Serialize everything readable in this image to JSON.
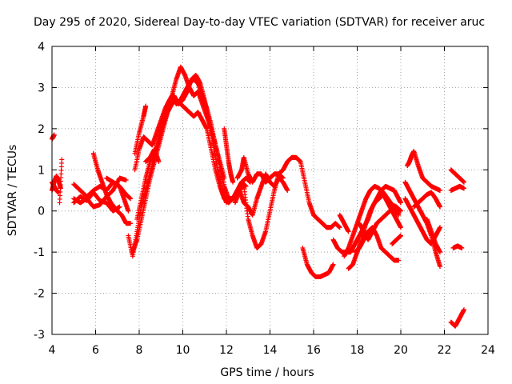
{
  "chart_data": {
    "type": "scatter",
    "title": "Day 295 of 2020, Sidereal Day-to-day VTEC variation (SDTVAR) for receiver aruc",
    "xlabel": "GPS time / hours",
    "ylabel": "SDTVAR / TECUs",
    "xlim": [
      4,
      24
    ],
    "ylim": [
      -3,
      4
    ],
    "x_ticks": [
      4,
      6,
      8,
      10,
      12,
      14,
      16,
      18,
      20,
      22,
      24
    ],
    "y_ticks": [
      -3,
      -2,
      -1,
      0,
      1,
      2,
      3,
      4
    ],
    "x_tick_labels": [
      "4",
      "6",
      "8",
      "10",
      "12",
      "14",
      "16",
      "18",
      "20",
      "22",
      "24"
    ],
    "y_tick_labels": [
      "-3",
      "-2",
      "-1",
      "0",
      "1",
      "2",
      "3",
      "4"
    ],
    "grid": true,
    "marker": "+",
    "color": "#ff0000",
    "series": [
      {
        "name": "s01",
        "x": [
          4.0,
          4.05,
          4.1
        ],
        "y": [
          1.75,
          1.8,
          1.85
        ]
      },
      {
        "name": "s02",
        "x": [
          4.0,
          4.1,
          4.2,
          4.3,
          4.4
        ],
        "y": [
          0.5,
          0.7,
          0.85,
          0.75,
          0.55
        ]
      },
      {
        "name": "s03",
        "x": [
          4.0,
          4.1,
          4.2,
          4.3
        ],
        "y": [
          0.7,
          0.6,
          0.5,
          0.45
        ]
      },
      {
        "name": "s04",
        "x": [
          4.35,
          4.45
        ],
        "y": [
          0.2,
          1.25
        ]
      },
      {
        "name": "s05",
        "x": [
          5.0,
          5.3,
          5.6,
          5.9,
          6.2,
          6.5,
          6.8,
          7.1,
          7.3,
          7.5
        ],
        "y": [
          0.65,
          0.5,
          0.35,
          0.5,
          0.6,
          0.5,
          0.7,
          0.6,
          0.3,
          0.0
        ]
      },
      {
        "name": "s06",
        "x": [
          5.0,
          5.3,
          5.6,
          5.9,
          6.2,
          6.5,
          6.8,
          7.1
        ],
        "y": [
          0.2,
          0.35,
          0.25,
          0.45,
          0.25,
          0.2,
          0.0,
          0.1
        ]
      },
      {
        "name": "s07",
        "x": [
          5.0,
          5.3,
          5.6,
          5.9,
          6.2,
          6.5,
          6.8,
          7.1,
          7.4
        ],
        "y": [
          0.3,
          0.2,
          0.3,
          0.1,
          0.15,
          0.35,
          0.5,
          0.8,
          0.75
        ]
      },
      {
        "name": "s08",
        "x": [
          5.9,
          6.1,
          6.3,
          6.5,
          6.7,
          7.0,
          7.2,
          7.4,
          7.6
        ],
        "y": [
          1.4,
          1.0,
          0.7,
          0.4,
          0.2,
          0.0,
          -0.1,
          -0.3,
          -0.3
        ]
      },
      {
        "name": "s09",
        "x": [
          6.5,
          6.8,
          7.1,
          7.4,
          7.6
        ],
        "y": [
          0.8,
          0.7,
          0.6,
          0.4,
          0.3
        ]
      },
      {
        "name": "s10",
        "x": [
          7.5,
          7.7,
          7.9,
          8.1,
          8.3,
          8.5,
          8.7,
          8.9,
          9.1,
          9.3,
          9.5,
          9.7,
          9.9,
          10.1,
          10.3,
          10.5,
          10.7,
          10.9,
          11.1,
          11.3,
          11.5,
          11.7,
          11.9,
          12.1,
          12.3,
          12.5,
          12.7,
          12.9
        ],
        "y": [
          -0.6,
          -1.1,
          -0.5,
          0.1,
          0.5,
          0.9,
          1.3,
          1.7,
          2.1,
          2.4,
          2.6,
          2.7,
          2.6,
          2.5,
          2.4,
          2.3,
          2.4,
          2.2,
          2.0,
          1.5,
          1.0,
          0.6,
          0.3,
          0.2,
          0.3,
          0.5,
          0.7,
          0.6
        ]
      },
      {
        "name": "s11",
        "x": [
          7.7,
          7.9,
          8.1,
          8.3,
          8.5,
          8.7,
          8.9,
          9.1,
          9.3,
          9.5,
          9.7,
          9.9,
          10.1,
          10.3,
          10.5,
          10.7,
          10.9,
          11.1,
          11.3,
          11.5,
          11.7,
          11.9,
          12.1,
          12.3,
          12.5,
          12.7,
          12.9,
          13.1
        ],
        "y": [
          -1.0,
          -0.7,
          -0.2,
          0.3,
          0.8,
          1.2,
          1.6,
          2.0,
          2.4,
          2.8,
          3.2,
          3.5,
          3.3,
          3.0,
          2.8,
          2.9,
          2.6,
          2.3,
          2.0,
          1.6,
          1.1,
          0.6,
          0.3,
          0.3,
          0.5,
          0.7,
          0.8,
          0.7
        ]
      },
      {
        "name": "s12",
        "x": [
          7.9,
          8.1,
          8.3,
          8.5,
          8.7,
          8.9,
          9.1,
          9.3,
          9.5,
          9.7,
          9.9,
          10.1,
          10.3,
          10.5,
          10.7,
          10.9,
          11.1,
          11.3,
          11.5,
          11.7,
          11.9
        ],
        "y": [
          -0.2,
          0.3,
          0.8,
          1.2,
          1.4,
          1.8,
          2.2,
          2.6,
          2.8,
          2.6,
          2.7,
          2.9,
          3.1,
          3.2,
          3.1,
          2.8,
          2.5,
          2.1,
          1.6,
          1.2,
          0.8
        ]
      },
      {
        "name": "s13",
        "x": [
          7.8,
          8.0,
          8.2,
          8.4,
          8.6,
          8.8,
          9.0,
          9.2,
          9.4,
          9.6,
          9.8,
          10.0,
          10.2,
          10.4,
          10.6,
          10.8,
          11.0,
          11.2,
          11.4,
          11.6,
          11.8,
          12.0
        ],
        "y": [
          1.0,
          1.5,
          1.8,
          1.7,
          1.6,
          1.9,
          2.2,
          2.5,
          2.7,
          2.8,
          2.6,
          2.7,
          2.9,
          3.2,
          3.3,
          3.1,
          2.7,
          2.2,
          1.6,
          1.0,
          0.5,
          0.2
        ]
      },
      {
        "name": "s14",
        "x": [
          7.8,
          8.0,
          8.2,
          8.3
        ],
        "y": [
          1.4,
          1.9,
          2.3,
          2.55
        ]
      },
      {
        "name": "s15",
        "x": [
          8.3,
          8.5,
          8.7,
          8.9
        ],
        "y": [
          1.2,
          1.3,
          1.5,
          1.2
        ]
      },
      {
        "name": "s16",
        "x": [
          11.9,
          12.0,
          12.1,
          12.2,
          12.3
        ],
        "y": [
          2.0,
          1.6,
          1.2,
          0.9,
          0.7
        ]
      },
      {
        "name": "s17",
        "x": [
          12.5,
          12.7,
          12.8,
          13.0,
          13.2,
          13.4,
          13.6,
          13.8,
          14.0,
          14.2,
          14.4,
          14.6,
          14.8,
          15.0,
          15.2,
          15.4,
          15.6,
          15.8,
          16.0,
          16.2,
          16.4,
          16.6,
          16.8,
          17.0,
          17.2
        ],
        "y": [
          0.8,
          1.0,
          1.3,
          0.9,
          0.7,
          0.9,
          0.9,
          0.7,
          0.8,
          0.9,
          0.9,
          1.0,
          1.2,
          1.3,
          1.3,
          1.2,
          0.7,
          0.2,
          -0.1,
          -0.2,
          -0.3,
          -0.4,
          -0.4,
          -0.3,
          -0.4
        ]
      },
      {
        "name": "s18",
        "x": [
          12.4,
          12.6,
          12.8,
          13.0,
          13.2,
          13.4,
          13.6,
          13.8,
          14.0,
          14.2,
          14.4,
          14.6
        ],
        "y": [
          0.2,
          0.5,
          0.6,
          -0.2,
          -0.6,
          -0.9,
          -0.8,
          -0.5,
          0.0,
          0.5,
          0.9,
          0.8
        ]
      },
      {
        "name": "s19",
        "x": [
          12.6,
          12.8,
          13.0,
          13.2,
          13.4,
          13.6,
          13.8,
          14.0,
          14.2,
          14.4,
          14.6,
          14.8
        ],
        "y": [
          0.5,
          0.2,
          0.1,
          -0.1,
          0.3,
          0.6,
          0.9,
          0.7,
          0.6,
          0.8,
          0.7,
          0.5
        ]
      },
      {
        "name": "s20",
        "x": [
          15.5,
          15.7,
          15.9,
          16.1,
          16.3,
          16.5,
          16.7,
          16.9
        ],
        "y": [
          -0.9,
          -1.3,
          -1.5,
          -1.6,
          -1.6,
          -1.55,
          -1.5,
          -1.3
        ]
      },
      {
        "name": "s21",
        "x": [
          16.9,
          17.1,
          17.3,
          17.5,
          17.7,
          17.9,
          18.1,
          18.3,
          18.5,
          18.7,
          18.9,
          19.1,
          19.3,
          19.5,
          19.7,
          19.9,
          20.0
        ],
        "y": [
          -0.7,
          -0.9,
          -1.0,
          -1.0,
          -1.0,
          -0.8,
          -0.6,
          -0.4,
          -0.2,
          0.1,
          0.3,
          0.5,
          0.6,
          0.55,
          0.5,
          0.3,
          0.2
        ]
      },
      {
        "name": "s22",
        "x": [
          17.4,
          17.6,
          17.8,
          18.0,
          18.2,
          18.4,
          18.6,
          18.8,
          19.0,
          19.2,
          19.4,
          19.6,
          19.8,
          20.0
        ],
        "y": [
          -1.1,
          -0.9,
          -0.6,
          -0.3,
          0.0,
          0.3,
          0.5,
          0.6,
          0.55,
          0.45,
          0.3,
          0.15,
          0.1,
          0.0
        ]
      },
      {
        "name": "s23",
        "x": [
          17.6,
          17.8,
          18.0,
          18.2,
          18.4,
          18.6,
          18.8,
          19.0,
          19.2,
          19.4,
          19.6,
          19.8,
          20.0
        ],
        "y": [
          -1.4,
          -1.3,
          -1.0,
          -0.7,
          -0.3,
          0.0,
          0.2,
          0.3,
          0.4,
          0.2,
          0.0,
          -0.2,
          -0.4
        ]
      },
      {
        "name": "s24",
        "x": [
          17.9,
          18.1,
          18.3,
          18.5,
          18.7,
          18.9,
          19.1,
          19.3,
          19.5,
          19.7,
          19.9
        ],
        "y": [
          -1.0,
          -0.9,
          -0.7,
          -0.5,
          -0.4,
          -0.6,
          -0.9,
          -1.0,
          -1.1,
          -1.2,
          -1.2
        ]
      },
      {
        "name": "s25",
        "x": [
          17.2,
          17.4,
          17.6
        ],
        "y": [
          -0.1,
          -0.3,
          -0.5
        ]
      },
      {
        "name": "s26",
        "x": [
          18.1,
          18.3,
          18.5,
          18.7,
          18.9,
          19.1,
          19.3,
          19.5,
          19.7,
          19.9
        ],
        "y": [
          -0.3,
          -0.5,
          -0.7,
          -0.5,
          -0.3,
          -0.2,
          -0.1,
          0.0,
          0.1,
          -0.1
        ]
      },
      {
        "name": "s27",
        "x": [
          19.6,
          19.8,
          20.0
        ],
        "y": [
          -0.8,
          -0.7,
          -0.6
        ]
      },
      {
        "name": "s28",
        "x": [
          20.3,
          20.4,
          20.5,
          20.6,
          20.8,
          21.0,
          21.2,
          21.4,
          21.6,
          21.8
        ],
        "y": [
          1.1,
          1.2,
          1.35,
          1.45,
          1.1,
          0.8,
          0.7,
          0.6,
          0.55,
          0.5
        ]
      },
      {
        "name": "s29",
        "x": [
          20.2,
          20.4,
          20.6,
          20.8,
          21.0,
          21.2,
          21.4,
          21.6,
          21.8
        ],
        "y": [
          0.7,
          0.5,
          0.3,
          0.1,
          -0.1,
          -0.3,
          -0.6,
          -1.0,
          -1.35
        ]
      },
      {
        "name": "s30",
        "x": [
          20.2,
          20.4,
          20.6,
          20.8,
          21.0,
          21.2,
          21.4,
          21.6,
          21.8
        ],
        "y": [
          0.3,
          0.1,
          -0.1,
          -0.3,
          -0.5,
          -0.7,
          -0.8,
          -0.6,
          -0.4
        ]
      },
      {
        "name": "s31",
        "x": [
          20.6,
          20.8,
          21.0,
          21.2,
          21.4,
          21.6,
          21.8
        ],
        "y": [
          0.1,
          0.2,
          0.3,
          0.4,
          0.45,
          0.3,
          0.1
        ]
      },
      {
        "name": "s32",
        "x": [
          21.2,
          21.4,
          21.6,
          21.8
        ],
        "y": [
          -0.2,
          -0.5,
          -0.8,
          -1.0
        ]
      },
      {
        "name": "s33",
        "x": [
          22.3,
          22.5,
          22.7,
          22.9
        ],
        "y": [
          1.0,
          0.9,
          0.8,
          0.7
        ]
      },
      {
        "name": "s34",
        "x": [
          22.3,
          22.5,
          22.7,
          22.9
        ],
        "y": [
          0.5,
          0.55,
          0.6,
          0.55
        ]
      },
      {
        "name": "s35",
        "x": [
          22.4,
          22.6,
          22.8
        ],
        "y": [
          -0.9,
          -0.85,
          -0.9
        ]
      },
      {
        "name": "s36",
        "x": [
          22.3,
          22.5,
          22.7,
          22.9
        ],
        "y": [
          -2.7,
          -2.8,
          -2.6,
          -2.4
        ]
      }
    ]
  }
}
